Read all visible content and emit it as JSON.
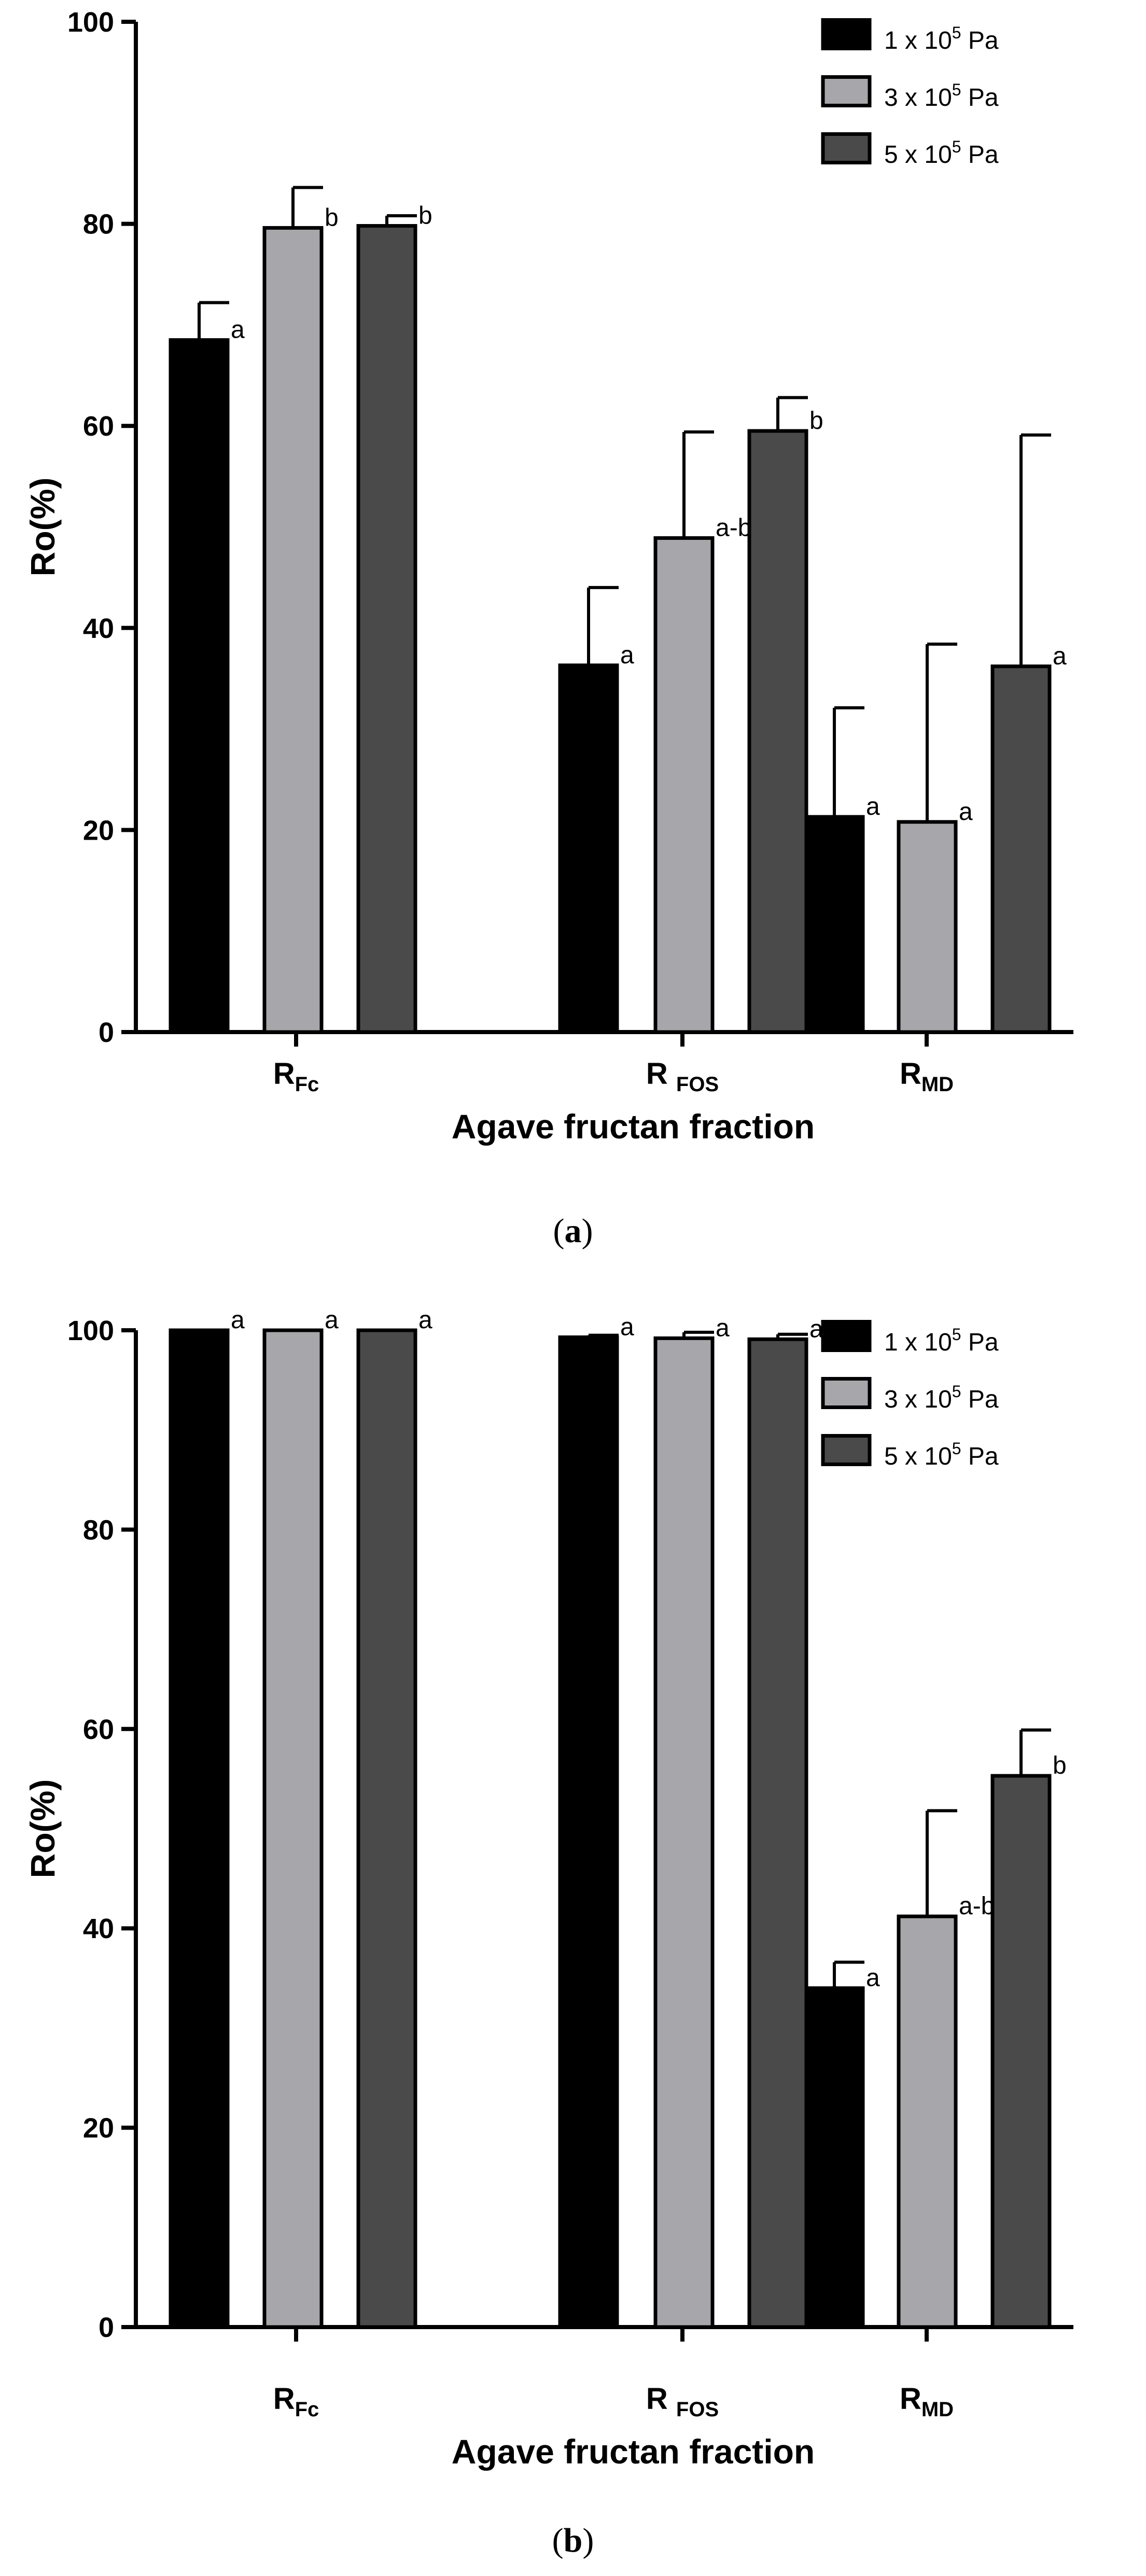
{
  "chart_data": [
    {
      "type": "bar",
      "panel": "a",
      "ylabel": "Ro(%)",
      "xlabel": "Agave fructan fraction",
      "ylim": [
        0,
        100
      ],
      "yticks": [
        0,
        20,
        40,
        60,
        80,
        100
      ],
      "categories": [
        {
          "main": "R",
          "sub": "Fc"
        },
        {
          "main": "R",
          "sub": "FOS",
          "spaced": true
        },
        {
          "main": "R",
          "sub": "MD"
        }
      ],
      "series": [
        {
          "name": "1 x 10^5 Pa",
          "values": [
            68.5,
            36.3,
            21.3
          ],
          "errors": [
            3.7,
            7.7,
            10.8
          ],
          "labels": [
            "a",
            "a",
            "a"
          ],
          "color": "#000000"
        },
        {
          "name": "3 x 10^5 Pa",
          "values": [
            79.6,
            48.9,
            20.8
          ],
          "errors": [
            4.0,
            10.5,
            17.6
          ],
          "labels": [
            "b",
            "a-b",
            "a"
          ],
          "color": "#a7a6ab"
        },
        {
          "name": "5 x 10^5 Pa",
          "values": [
            79.8,
            59.5,
            36.2
          ],
          "errors": [
            1.0,
            3.3,
            22.9
          ],
          "labels": [
            "b",
            "b",
            "a"
          ],
          "color": "#4a4a4a"
        }
      ],
      "legend": {
        "placement": "top-right"
      }
    },
    {
      "type": "bar",
      "panel": "b",
      "ylabel": "Ro(%)",
      "xlabel": "Agave fructan fraction",
      "ylim": [
        0,
        100
      ],
      "yticks": [
        0,
        20,
        40,
        60,
        80,
        100
      ],
      "categories": [
        {
          "main": "R",
          "sub": "Fc"
        },
        {
          "main": "R",
          "sub": "FOS",
          "spaced": true
        },
        {
          "main": "R",
          "sub": "MD"
        }
      ],
      "series": [
        {
          "name": "1 x 10^5 Pa",
          "values": [
            100.0,
            99.3,
            34.0
          ],
          "errors": [
            0.0,
            0.2,
            2.6
          ],
          "labels": [
            "a",
            "a",
            "a"
          ],
          "color": "#000000"
        },
        {
          "name": "3 x 10^5 Pa",
          "values": [
            100.0,
            99.2,
            41.2
          ],
          "errors": [
            0.0,
            0.6,
            10.6
          ],
          "labels": [
            "a",
            "a",
            "a-b"
          ],
          "color": "#a7a6ab"
        },
        {
          "name": "5 x 10^5 Pa",
          "values": [
            100.0,
            99.1,
            55.3
          ],
          "errors": [
            0.0,
            0.5,
            4.6
          ],
          "labels": [
            "a",
            "a",
            "b"
          ],
          "color": "#4a4a4a"
        }
      ],
      "legend": {
        "placement": "top-right"
      }
    }
  ],
  "legend_entries": [
    {
      "prefix": "1 x 10",
      "exp": "5",
      "suffix": " Pa"
    },
    {
      "prefix": "3 x 10",
      "exp": "5",
      "suffix": " Pa"
    },
    {
      "prefix": "5 x 10",
      "exp": "5",
      "suffix": " Pa"
    }
  ],
  "panel_labels": [
    {
      "open": "(",
      "letter": "a",
      "close": ")"
    },
    {
      "open": "(",
      "letter": "b",
      "close": ")"
    }
  ]
}
